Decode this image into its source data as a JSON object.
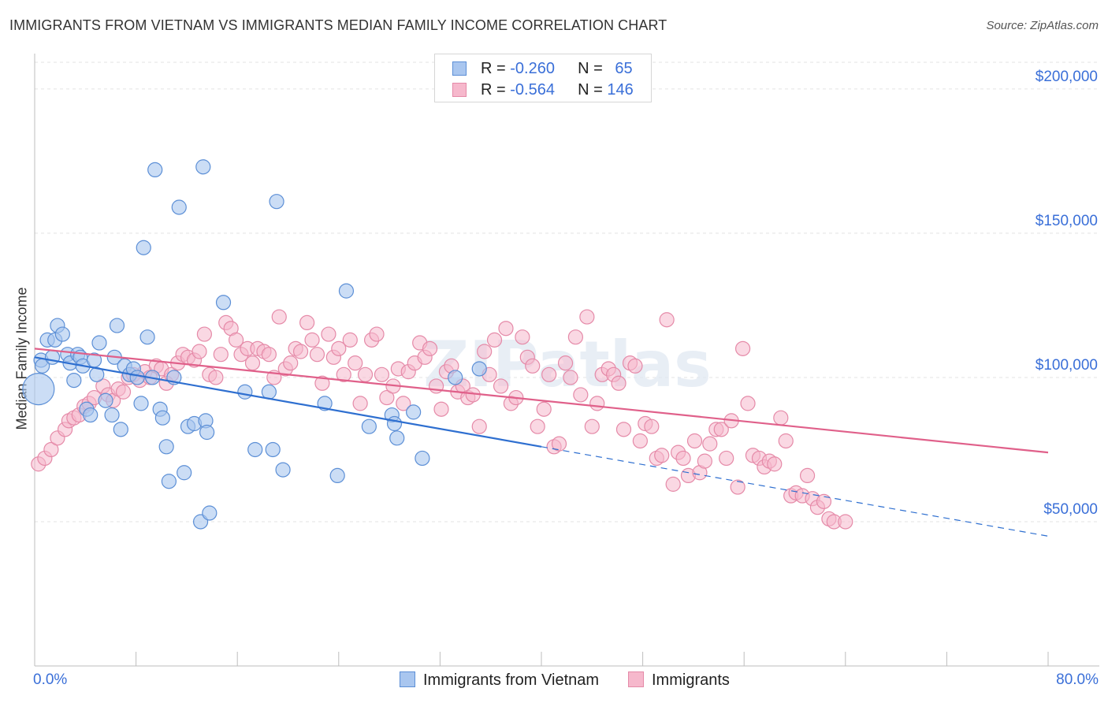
{
  "title": "IMMIGRANTS FROM VIETNAM VS IMMIGRANTS MEDIAN FAMILY INCOME CORRELATION CHART",
  "source": "Source: ZipAtlas.com",
  "watermark": "ZIPatlas",
  "legend": {
    "rows": [
      {
        "r_label": "R = ",
        "r_value": "-0.260",
        "n_label": "N = ",
        "n_value": "65"
      },
      {
        "r_label": "R = ",
        "r_value": "-0.564",
        "n_label": "N = ",
        "n_value": "146"
      }
    ]
  },
  "bottom_legend": [
    "Immigrants from Vietnam",
    "Immigrants"
  ],
  "colors": {
    "blue_fill": "#a9c6ef",
    "blue_stroke": "#5c8fd6",
    "blue_line": "#2e6fd0",
    "pink_fill": "#f6b8cc",
    "pink_stroke": "#e58aa8",
    "pink_line": "#e0608a",
    "axis_text": "#3a6fd8",
    "grid": "#e3e3e3"
  },
  "chart_data": {
    "type": "scatter",
    "title": "IMMIGRANTS FROM VIETNAM VS IMMIGRANTS MEDIAN FAMILY INCOME CORRELATION CHART",
    "xlabel": "",
    "ylabel": "Median Family Income",
    "xlim": [
      0,
      80
    ],
    "ylim": [
      0,
      215000
    ],
    "x_tick_labels": [
      "0.0%",
      "80.0%"
    ],
    "y_ticks": [
      50000,
      100000,
      150000,
      200000
    ],
    "y_tick_labels": [
      "$50,000",
      "$100,000",
      "$150,000",
      "$200,000"
    ],
    "grid": true,
    "series": [
      {
        "name": "Immigrants from Vietnam",
        "R": -0.26,
        "N": 65,
        "trend": {
          "x0": 0.0,
          "y0": 107000,
          "x1": 40.0,
          "y1": 76000,
          "dash_to_x": 80.0,
          "dash_to_y": 45000
        },
        "points": [
          [
            0.3,
            96000
          ],
          [
            0.5,
            106000
          ],
          [
            0.6,
            104000
          ],
          [
            1.0,
            113000
          ],
          [
            1.4,
            107000
          ],
          [
            1.6,
            113000
          ],
          [
            1.8,
            118000
          ],
          [
            2.2,
            115000
          ],
          [
            2.6,
            108000
          ],
          [
            2.8,
            105000
          ],
          [
            3.1,
            99000
          ],
          [
            3.4,
            108000
          ],
          [
            3.6,
            107000
          ],
          [
            3.8,
            104000
          ],
          [
            4.1,
            89000
          ],
          [
            4.4,
            87000
          ],
          [
            4.7,
            106000
          ],
          [
            4.9,
            101000
          ],
          [
            5.1,
            112000
          ],
          [
            5.6,
            92000
          ],
          [
            6.1,
            87000
          ],
          [
            6.3,
            107000
          ],
          [
            6.5,
            118000
          ],
          [
            6.8,
            82000
          ],
          [
            7.1,
            104000
          ],
          [
            7.5,
            101000
          ],
          [
            7.8,
            103000
          ],
          [
            8.1,
            100000
          ],
          [
            8.4,
            91000
          ],
          [
            8.6,
            145000
          ],
          [
            8.9,
            114000
          ],
          [
            9.3,
            100000
          ],
          [
            9.5,
            172000
          ],
          [
            9.9,
            89000
          ],
          [
            10.1,
            86000
          ],
          [
            10.4,
            76000
          ],
          [
            10.6,
            64000
          ],
          [
            11.0,
            100000
          ],
          [
            11.4,
            159000
          ],
          [
            11.8,
            67000
          ],
          [
            12.1,
            83000
          ],
          [
            12.6,
            84000
          ],
          [
            13.1,
            50000
          ],
          [
            13.3,
            173000
          ],
          [
            13.5,
            85000
          ],
          [
            13.6,
            81000
          ],
          [
            13.8,
            53000
          ],
          [
            14.9,
            126000
          ],
          [
            16.6,
            95000
          ],
          [
            17.4,
            75000
          ],
          [
            18.5,
            95000
          ],
          [
            18.8,
            75000
          ],
          [
            19.1,
            161000
          ],
          [
            19.6,
            68000
          ],
          [
            22.9,
            91000
          ],
          [
            23.9,
            66000
          ],
          [
            24.6,
            130000
          ],
          [
            26.4,
            83000
          ],
          [
            28.2,
            87000
          ],
          [
            28.4,
            84000
          ],
          [
            28.6,
            79000
          ],
          [
            29.9,
            88000
          ],
          [
            30.6,
            72000
          ],
          [
            33.2,
            100000
          ],
          [
            35.1,
            103000
          ]
        ]
      },
      {
        "name": "Immigrants",
        "R": -0.564,
        "N": 146,
        "trend": {
          "x0": 0.0,
          "y0": 110000,
          "x1": 80.0,
          "y1": 74000
        },
        "points": [
          [
            0.3,
            70000
          ],
          [
            0.8,
            72000
          ],
          [
            1.3,
            75000
          ],
          [
            1.8,
            79000
          ],
          [
            2.4,
            82000
          ],
          [
            2.7,
            85000
          ],
          [
            3.1,
            86000
          ],
          [
            3.5,
            87000
          ],
          [
            3.9,
            90000
          ],
          [
            4.3,
            91000
          ],
          [
            4.7,
            93000
          ],
          [
            5.4,
            97000
          ],
          [
            5.8,
            94000
          ],
          [
            6.2,
            92000
          ],
          [
            6.6,
            96000
          ],
          [
            7.0,
            95000
          ],
          [
            7.4,
            100000
          ],
          [
            7.8,
            101000
          ],
          [
            8.3,
            99000
          ],
          [
            8.7,
            102000
          ],
          [
            9.1,
            100000
          ],
          [
            9.6,
            104000
          ],
          [
            10.0,
            103000
          ],
          [
            10.4,
            98000
          ],
          [
            10.8,
            101000
          ],
          [
            11.3,
            105000
          ],
          [
            11.7,
            108000
          ],
          [
            12.1,
            107000
          ],
          [
            12.6,
            106000
          ],
          [
            13.0,
            109000
          ],
          [
            13.4,
            115000
          ],
          [
            13.8,
            101000
          ],
          [
            14.3,
            100000
          ],
          [
            14.7,
            108000
          ],
          [
            15.1,
            119000
          ],
          [
            15.5,
            117000
          ],
          [
            15.9,
            113000
          ],
          [
            16.3,
            108000
          ],
          [
            16.8,
            110000
          ],
          [
            17.2,
            105000
          ],
          [
            17.6,
            110000
          ],
          [
            18.1,
            109000
          ],
          [
            18.5,
            108000
          ],
          [
            18.9,
            100000
          ],
          [
            19.3,
            121000
          ],
          [
            19.8,
            103000
          ],
          [
            20.2,
            105000
          ],
          [
            20.6,
            110000
          ],
          [
            21.0,
            109000
          ],
          [
            21.5,
            119000
          ],
          [
            21.9,
            113000
          ],
          [
            22.3,
            108000
          ],
          [
            22.7,
            98000
          ],
          [
            23.2,
            115000
          ],
          [
            23.6,
            107000
          ],
          [
            24.0,
            110000
          ],
          [
            24.4,
            101000
          ],
          [
            24.9,
            113000
          ],
          [
            25.3,
            105000
          ],
          [
            25.7,
            91000
          ],
          [
            26.1,
            101000
          ],
          [
            26.6,
            113000
          ],
          [
            27.0,
            115000
          ],
          [
            27.4,
            101000
          ],
          [
            27.8,
            93000
          ],
          [
            28.3,
            97000
          ],
          [
            28.7,
            103000
          ],
          [
            29.1,
            91000
          ],
          [
            29.5,
            102000
          ],
          [
            30.0,
            105000
          ],
          [
            30.4,
            112000
          ],
          [
            30.8,
            107000
          ],
          [
            31.2,
            110000
          ],
          [
            31.7,
            97000
          ],
          [
            32.1,
            89000
          ],
          [
            32.5,
            102000
          ],
          [
            32.9,
            104000
          ],
          [
            33.4,
            95000
          ],
          [
            33.8,
            97000
          ],
          [
            34.2,
            93000
          ],
          [
            34.6,
            94000
          ],
          [
            35.1,
            83000
          ],
          [
            35.5,
            109000
          ],
          [
            35.9,
            101000
          ],
          [
            36.3,
            113000
          ],
          [
            36.8,
            97000
          ],
          [
            37.2,
            117000
          ],
          [
            37.6,
            91000
          ],
          [
            38.0,
            93000
          ],
          [
            38.5,
            114000
          ],
          [
            38.9,
            107000
          ],
          [
            39.3,
            104000
          ],
          [
            39.7,
            83000
          ],
          [
            40.2,
            89000
          ],
          [
            40.6,
            101000
          ],
          [
            41.0,
            76000
          ],
          [
            41.4,
            77000
          ],
          [
            41.9,
            105000
          ],
          [
            42.3,
            100000
          ],
          [
            42.7,
            114000
          ],
          [
            43.1,
            94000
          ],
          [
            43.6,
            121000
          ],
          [
            44.0,
            83000
          ],
          [
            44.4,
            91000
          ],
          [
            44.8,
            101000
          ],
          [
            45.3,
            103000
          ],
          [
            45.7,
            101000
          ],
          [
            46.1,
            98000
          ],
          [
            46.5,
            82000
          ],
          [
            47.0,
            105000
          ],
          [
            47.4,
            104000
          ],
          [
            47.8,
            78000
          ],
          [
            48.2,
            84000
          ],
          [
            48.7,
            83000
          ],
          [
            49.1,
            72000
          ],
          [
            49.5,
            73000
          ],
          [
            49.9,
            120000
          ],
          [
            50.4,
            63000
          ],
          [
            50.8,
            74000
          ],
          [
            51.2,
            72000
          ],
          [
            51.6,
            66000
          ],
          [
            52.1,
            78000
          ],
          [
            52.5,
            67000
          ],
          [
            52.9,
            71000
          ],
          [
            53.3,
            77000
          ],
          [
            53.8,
            82000
          ],
          [
            54.2,
            82000
          ],
          [
            54.6,
            72000
          ],
          [
            55.0,
            85000
          ],
          [
            55.5,
            62000
          ],
          [
            55.9,
            110000
          ],
          [
            56.3,
            91000
          ],
          [
            56.7,
            73000
          ],
          [
            57.2,
            72000
          ],
          [
            57.6,
            69000
          ],
          [
            58.0,
            71000
          ],
          [
            58.4,
            70000
          ],
          [
            58.9,
            86000
          ],
          [
            59.3,
            78000
          ],
          [
            59.7,
            59000
          ],
          [
            60.1,
            60000
          ],
          [
            60.6,
            59000
          ],
          [
            61.0,
            66000
          ],
          [
            61.4,
            58000
          ],
          [
            61.8,
            55000
          ],
          [
            62.3,
            57000
          ],
          [
            62.7,
            51000
          ],
          [
            63.1,
            50000
          ],
          [
            64.0,
            50000
          ]
        ]
      }
    ]
  }
}
